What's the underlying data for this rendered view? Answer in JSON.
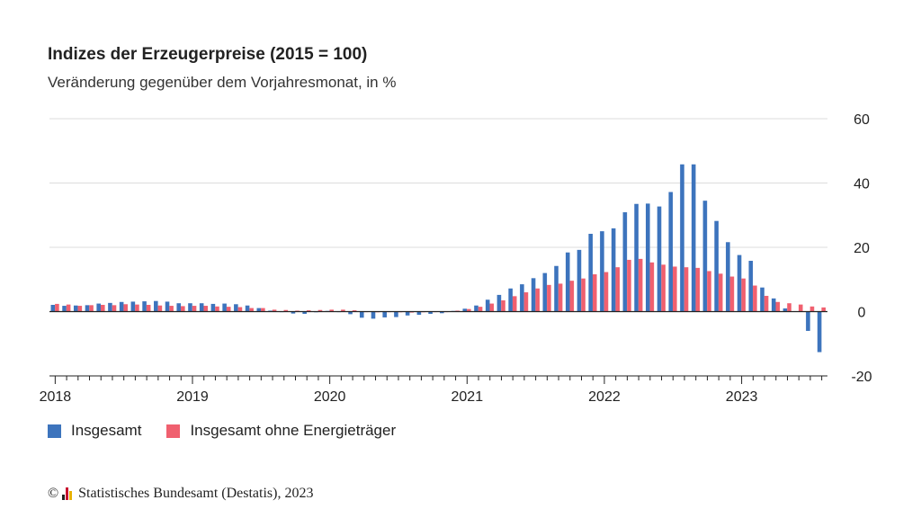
{
  "title": "Indizes der Erzeugerpreise (2015 = 100)",
  "subtitle": "Veränderung gegenüber dem Vorjahresmonat, in %",
  "colors": {
    "series1": "#3d74bd",
    "series2": "#f0606f",
    "grid": "#dddddd",
    "axis": "#222222"
  },
  "legend": [
    {
      "label": "Insgesamt",
      "color": "#3d74bd"
    },
    {
      "label": "Insgesamt ohne Energieträger",
      "color": "#f0606f"
    }
  ],
  "footer": {
    "copyright": "©",
    "logo_icon": "destatis-logo-icon",
    "text": "Statistisches Bundesamt (Destatis), 2023"
  },
  "chart_data": {
    "type": "bar",
    "title": "Indizes der Erzeugerpreise (2015 = 100)",
    "subtitle": "Veränderung gegenüber dem Vorjahresmonat, in %",
    "xlabel": "",
    "ylabel": "",
    "ylim": [
      -20,
      60
    ],
    "yticks": [
      60,
      40,
      20,
      0,
      -20
    ],
    "y_axis_side": "right",
    "grid": true,
    "legend_position": "bottom-left",
    "x_tick_labels": [
      "2018",
      "2019",
      "2020",
      "2021",
      "2022",
      "2023"
    ],
    "period": "monthly, January 2018 – August 2023",
    "series": [
      {
        "name": "Insgesamt",
        "color": "#3d74bd",
        "values": [
          2.1,
          1.8,
          1.9,
          2.0,
          2.5,
          2.7,
          3.0,
          3.1,
          3.2,
          3.3,
          3.1,
          2.6,
          2.6,
          2.6,
          2.4,
          2.5,
          2.3,
          1.9,
          1.1,
          0.3,
          -0.1,
          -0.6,
          -0.7,
          -0.2,
          0.2,
          -0.1,
          -0.8,
          -1.9,
          -2.2,
          -1.8,
          -1.7,
          -1.2,
          -1.0,
          -0.7,
          -0.5,
          0.2,
          0.9,
          1.9,
          3.7,
          5.2,
          7.2,
          8.5,
          10.4,
          12.0,
          14.2,
          18.4,
          19.2,
          24.2,
          25.0,
          25.9,
          30.9,
          33.5,
          33.6,
          32.7,
          37.2,
          45.8,
          45.8,
          34.5,
          28.2,
          21.6,
          17.6,
          15.8,
          7.5,
          4.1,
          1.0,
          0.1,
          -6.0,
          -12.6
        ]
      },
      {
        "name": "Insgesamt ohne Energieträger",
        "color": "#f0606f",
        "values": [
          2.4,
          2.2,
          1.8,
          2.0,
          2.1,
          2.0,
          2.3,
          2.2,
          2.1,
          1.9,
          1.8,
          1.7,
          1.8,
          1.8,
          1.6,
          1.5,
          1.4,
          1.1,
          1.1,
          0.6,
          0.5,
          0.3,
          0.4,
          0.5,
          0.6,
          0.6,
          0.4,
          0.0,
          -0.2,
          -0.1,
          -0.2,
          -0.3,
          -0.2,
          -0.1,
          0.0,
          0.3,
          0.8,
          1.5,
          2.5,
          3.5,
          4.8,
          6.0,
          7.2,
          8.3,
          8.7,
          9.6,
          10.3,
          11.6,
          12.3,
          13.8,
          16.1,
          16.4,
          15.3,
          14.6,
          14.0,
          13.8,
          13.6,
          12.6,
          11.8,
          10.9,
          10.3,
          8.1,
          4.9,
          3.0,
          2.6,
          2.2,
          1.6,
          1.3
        ]
      }
    ]
  }
}
